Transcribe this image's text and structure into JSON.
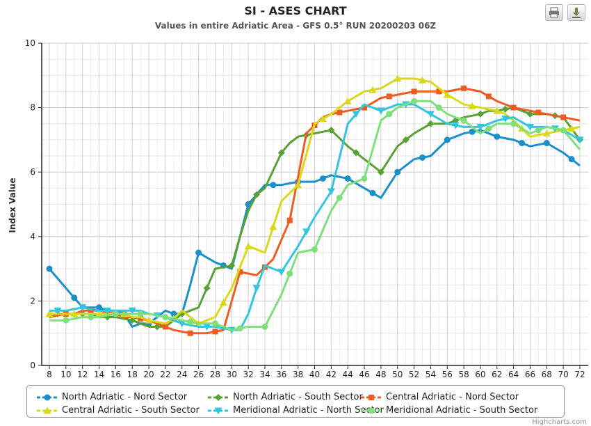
{
  "chart_data": {
    "type": "line",
    "title": "SI - ASES CHART",
    "subtitle": "Values in entire Adriatic Area - GFS 0.5° RUN 20200203 06Z",
    "ylabel": "Index Value",
    "xlabel": "",
    "ylim": [
      0,
      10
    ],
    "yticks": [
      0,
      2,
      4,
      6,
      8,
      10
    ],
    "grid": true,
    "legend_position": "bottom",
    "x": [
      8,
      9,
      10,
      11,
      12,
      13,
      14,
      15,
      16,
      17,
      18,
      19,
      20,
      21,
      22,
      23,
      24,
      25,
      26,
      27,
      28,
      29,
      30,
      31,
      32,
      33,
      34,
      35,
      36,
      37,
      38,
      39,
      40,
      41,
      42,
      43,
      44,
      45,
      46,
      47,
      48,
      49,
      50,
      51,
      52,
      53,
      54,
      55,
      56,
      57,
      58,
      59,
      60,
      61,
      62,
      63,
      64,
      65,
      66,
      67,
      68,
      69,
      70,
      71,
      72
    ],
    "x_tick_labels": [
      "8",
      "10",
      "12",
      "14",
      "16",
      "18",
      "20",
      "22",
      "24",
      "26",
      "28",
      "30",
      "32",
      "34",
      "36",
      "38",
      "40",
      "42",
      "44",
      "46",
      "48",
      "50",
      "52",
      "54",
      "56",
      "58",
      "60",
      "62",
      "64",
      "66",
      "68",
      "70",
      "72"
    ],
    "series": [
      {
        "name": "North Adriatic - Nord Sector",
        "color": "#1a8fc9",
        "marker": "circle",
        "marker_every": 3,
        "marker_offset": 0,
        "values": [
          3.0,
          2.7,
          2.4,
          2.1,
          1.8,
          1.8,
          1.8,
          1.7,
          1.7,
          1.6,
          1.2,
          1.3,
          1.3,
          1.5,
          1.7,
          1.6,
          1.6,
          2.5,
          3.5,
          3.35,
          3.2,
          3.1,
          3.0,
          4.0,
          5.0,
          5.3,
          5.6,
          5.6,
          5.6,
          5.65,
          5.7,
          5.7,
          5.7,
          5.8,
          5.9,
          5.85,
          5.8,
          5.65,
          5.5,
          5.35,
          5.2,
          5.6,
          6.0,
          6.2,
          6.4,
          6.45,
          6.5,
          6.75,
          7.0,
          7.1,
          7.2,
          7.25,
          7.3,
          7.2,
          7.1,
          7.05,
          7.0,
          6.9,
          6.8,
          6.85,
          6.9,
          6.75,
          6.6,
          6.4,
          6.2
        ]
      },
      {
        "name": "North Adriatic - South Sector",
        "color": "#5aa135",
        "marker": "diamond",
        "marker_every": 3,
        "marker_offset": 1,
        "values": [
          1.6,
          1.6,
          1.6,
          1.6,
          1.6,
          1.6,
          1.5,
          1.5,
          1.5,
          1.45,
          1.4,
          1.3,
          1.2,
          1.2,
          1.2,
          1.4,
          1.6,
          1.7,
          1.8,
          2.4,
          3.0,
          3.05,
          3.1,
          4.0,
          4.8,
          5.3,
          5.5,
          6.05,
          6.6,
          6.9,
          7.1,
          7.15,
          7.2,
          7.25,
          7.3,
          7.05,
          6.8,
          6.6,
          6.4,
          6.2,
          6.0,
          6.4,
          6.8,
          7.0,
          7.2,
          7.35,
          7.5,
          7.5,
          7.5,
          7.6,
          7.7,
          7.75,
          7.8,
          7.9,
          7.9,
          7.95,
          8.0,
          7.9,
          7.8,
          7.8,
          7.8,
          7.75,
          7.7,
          7.35,
          7.0
        ]
      },
      {
        "name": "Central Adriatic - Nord Sector",
        "color": "#ee5c21",
        "marker": "square",
        "marker_every": 3,
        "marker_offset": 2,
        "values": [
          1.5,
          1.55,
          1.6,
          1.6,
          1.7,
          1.7,
          1.7,
          1.65,
          1.6,
          1.5,
          1.5,
          1.45,
          1.4,
          1.3,
          1.2,
          1.1,
          1.05,
          1.0,
          1.0,
          1.0,
          1.05,
          1.1,
          2.0,
          2.9,
          2.85,
          2.8,
          3.05,
          3.3,
          3.9,
          4.5,
          5.85,
          7.2,
          7.45,
          7.7,
          7.8,
          7.85,
          7.9,
          7.95,
          8.0,
          8.15,
          8.3,
          8.35,
          8.4,
          8.45,
          8.5,
          8.5,
          8.5,
          8.5,
          8.5,
          8.55,
          8.6,
          8.55,
          8.5,
          8.35,
          8.2,
          8.1,
          8.0,
          7.95,
          7.9,
          7.85,
          7.8,
          7.75,
          7.7,
          7.65,
          7.6
        ]
      },
      {
        "name": "Central Adriatic - South Sector",
        "color": "#d9d91a",
        "marker": "triangle",
        "marker_every": 3,
        "marker_offset": 0,
        "values": [
          1.6,
          1.6,
          1.6,
          1.6,
          1.6,
          1.6,
          1.6,
          1.6,
          1.6,
          1.6,
          1.5,
          1.5,
          1.4,
          1.35,
          1.3,
          1.45,
          1.7,
          1.5,
          1.3,
          1.4,
          1.5,
          1.95,
          2.4,
          3.05,
          3.7,
          3.6,
          3.5,
          4.3,
          5.1,
          5.35,
          5.6,
          6.55,
          7.5,
          7.65,
          7.8,
          8.0,
          8.2,
          8.35,
          8.5,
          8.55,
          8.6,
          8.75,
          8.9,
          8.9,
          8.9,
          8.85,
          8.8,
          8.6,
          8.4,
          8.25,
          8.1,
          8.05,
          8.0,
          7.95,
          7.9,
          7.8,
          7.6,
          7.35,
          7.1,
          7.15,
          7.2,
          7.25,
          7.3,
          7.35,
          7.4
        ]
      },
      {
        "name": "Meridional Adriatic - North Sector",
        "color": "#33c4e0",
        "marker": "triangle-down",
        "marker_every": 3,
        "marker_offset": 1,
        "values": [
          1.7,
          1.7,
          1.7,
          1.75,
          1.8,
          1.75,
          1.7,
          1.7,
          1.7,
          1.7,
          1.7,
          1.7,
          1.6,
          1.55,
          1.5,
          1.4,
          1.3,
          1.25,
          1.2,
          1.2,
          1.2,
          1.15,
          1.1,
          1.1,
          1.6,
          2.4,
          3.1,
          3.0,
          2.9,
          3.3,
          3.7,
          4.15,
          4.6,
          5.0,
          5.4,
          6.45,
          7.5,
          7.8,
          8.1,
          8.0,
          7.9,
          8.0,
          8.1,
          8.1,
          8.1,
          7.95,
          7.8,
          7.65,
          7.5,
          7.45,
          7.4,
          7.4,
          7.4,
          7.5,
          7.6,
          7.65,
          7.7,
          7.55,
          7.4,
          7.4,
          7.4,
          7.35,
          7.3,
          7.15,
          7.0
        ]
      },
      {
        "name": "Meridional Adriatic - South Sector",
        "color": "#7ee07b",
        "marker": "circle",
        "marker_every": 3,
        "marker_offset": 2,
        "values": [
          1.4,
          1.4,
          1.4,
          1.45,
          1.5,
          1.5,
          1.5,
          1.55,
          1.6,
          1.6,
          1.6,
          1.6,
          1.6,
          1.55,
          1.5,
          1.45,
          1.4,
          1.35,
          1.3,
          1.3,
          1.3,
          1.2,
          1.1,
          1.15,
          1.2,
          1.2,
          1.2,
          1.7,
          2.2,
          2.85,
          3.5,
          3.55,
          3.6,
          4.2,
          4.8,
          5.2,
          5.6,
          5.7,
          5.8,
          6.7,
          7.6,
          7.8,
          8.0,
          8.1,
          8.2,
          8.2,
          8.2,
          8.0,
          7.8,
          7.7,
          7.6,
          7.4,
          7.2,
          7.35,
          7.5,
          7.5,
          7.5,
          7.35,
          7.2,
          7.3,
          7.4,
          7.35,
          7.3,
          7.0,
          6.7
        ]
      }
    ]
  },
  "toolbar": {
    "print_icon": "printer-icon",
    "export_icon": "download-icon"
  },
  "credits": "Highcharts.com"
}
